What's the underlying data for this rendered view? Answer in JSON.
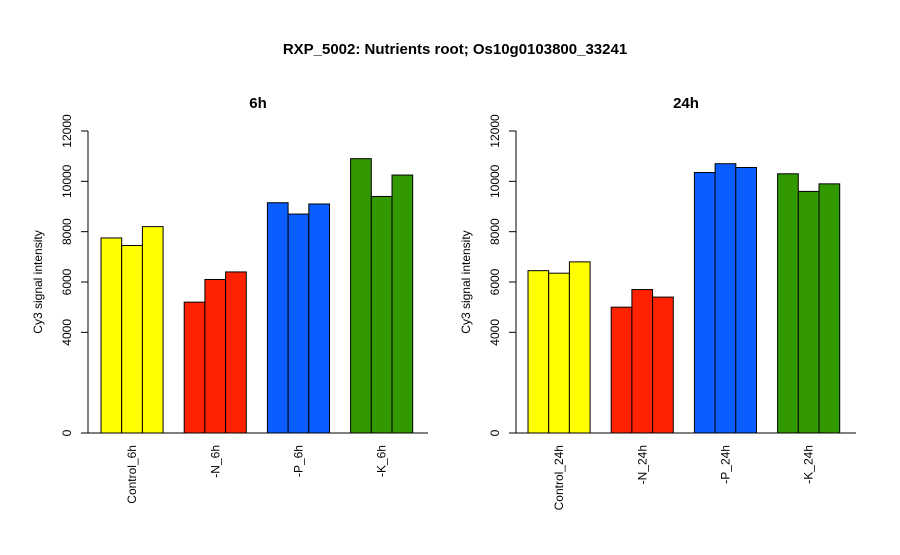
{
  "chart_data": {
    "type": "bar",
    "title": "RXP_5002: Nutrients root; Os10g0103800_33241",
    "colors": {
      "Control": "#ffff00",
      "-N": "#ff2200",
      "-P": "#0a5eff",
      "-K": "#339900"
    },
    "panels": [
      {
        "title": "6h",
        "ylabel": "Cy3 signal intensity",
        "ylim": [
          0,
          12000
        ],
        "yticks": [
          0,
          4000,
          6000,
          8000,
          10000,
          12000
        ],
        "groups": [
          {
            "label": "Control_6h",
            "color_key": "Control",
            "values": [
              7750,
              7450,
              8200
            ]
          },
          {
            "label": "-N_6h",
            "color_key": "-N",
            "values": [
              5200,
              6100,
              6400
            ]
          },
          {
            "label": "-P_6h",
            "color_key": "-P",
            "values": [
              9150,
              8700,
              9100
            ]
          },
          {
            "label": "-K_6h",
            "color_key": "-K",
            "values": [
              10900,
              9400,
              10250
            ]
          }
        ]
      },
      {
        "title": "24h",
        "ylabel": "Cy3 signal intensity",
        "ylim": [
          0,
          12000
        ],
        "yticks": [
          0,
          4000,
          6000,
          8000,
          10000,
          12000
        ],
        "groups": [
          {
            "label": "Control_24h",
            "color_key": "Control",
            "values": [
              6450,
              6350,
              6800
            ]
          },
          {
            "label": "-N_24h",
            "color_key": "-N",
            "values": [
              5000,
              5700,
              5400
            ]
          },
          {
            "label": "-P_24h",
            "color_key": "-P",
            "values": [
              10350,
              10700,
              10550
            ]
          },
          {
            "label": "-K_24h",
            "color_key": "-K",
            "values": [
              10300,
              9600,
              9900
            ]
          }
        ]
      }
    ]
  }
}
